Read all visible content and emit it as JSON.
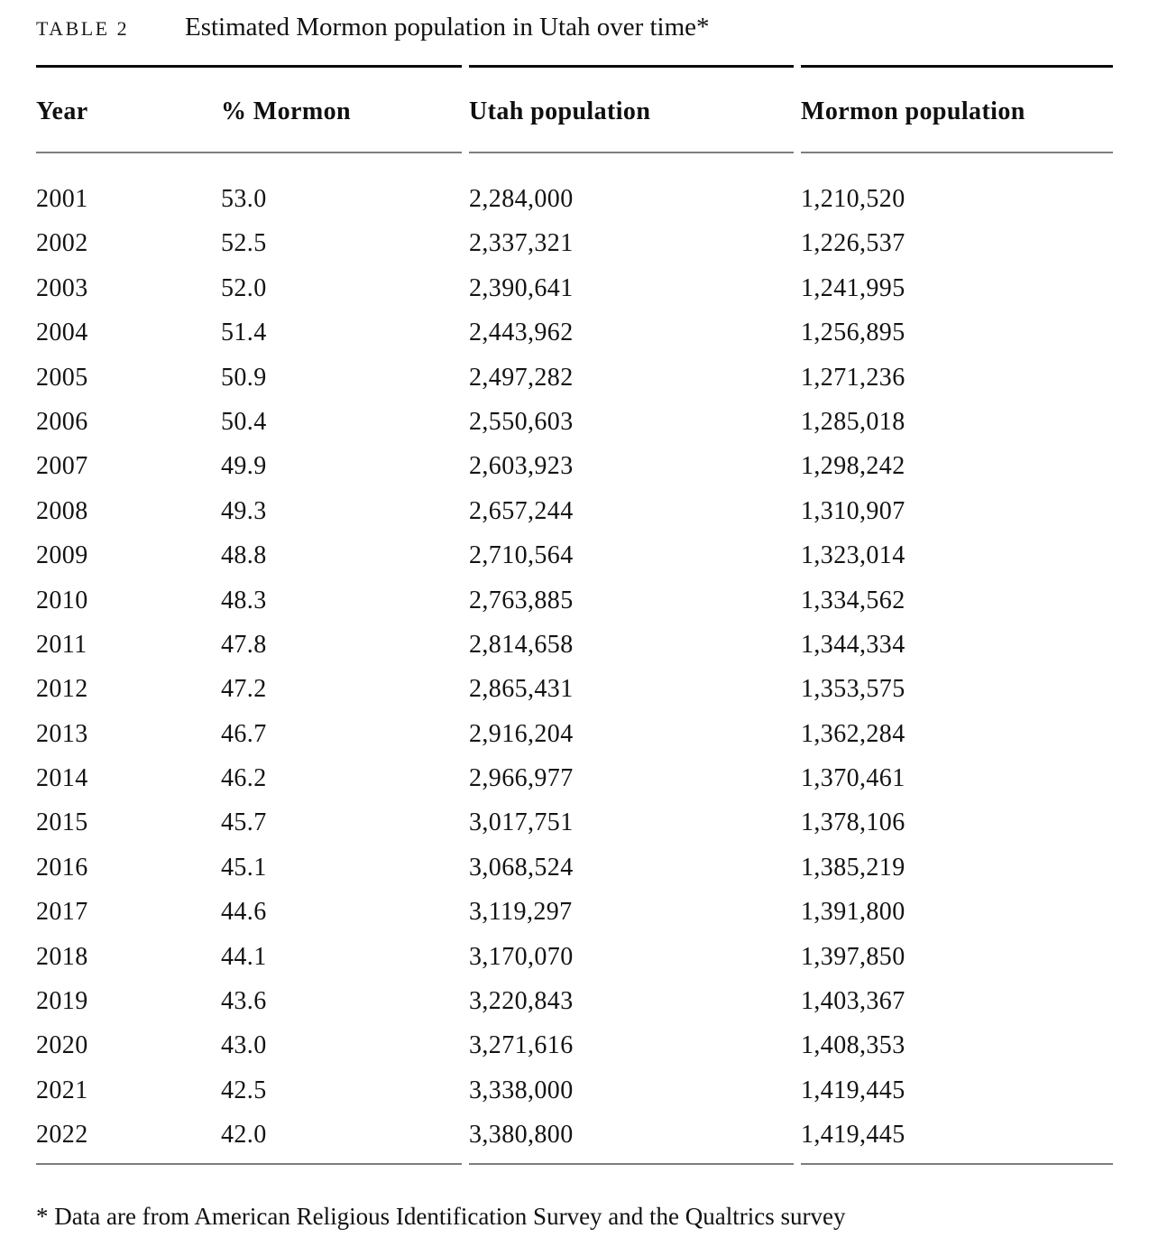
{
  "page": {
    "label": "TABLE 2",
    "title": "Estimated Mormon population in Utah over time*",
    "footnote": "* Data are from American Religious Identification Survey and the Qualtrics survey"
  },
  "chart_data": {
    "type": "table",
    "title": "Estimated Mormon population in Utah over time*",
    "columns": [
      "Year",
      "% Mormon",
      "Utah population",
      "Mormon population"
    ],
    "rows": [
      [
        "2001",
        "53.0",
        "2,284,000",
        "1,210,520"
      ],
      [
        "2002",
        "52.5",
        "2,337,321",
        "1,226,537"
      ],
      [
        "2003",
        "52.0",
        "2,390,641",
        "1,241,995"
      ],
      [
        "2004",
        "51.4",
        "2,443,962",
        "1,256,895"
      ],
      [
        "2005",
        "50.9",
        "2,497,282",
        "1,271,236"
      ],
      [
        "2006",
        "50.4",
        "2,550,603",
        "1,285,018"
      ],
      [
        "2007",
        "49.9",
        "2,603,923",
        "1,298,242"
      ],
      [
        "2008",
        "49.3",
        "2,657,244",
        "1,310,907"
      ],
      [
        "2009",
        "48.8",
        "2,710,564",
        "1,323,014"
      ],
      [
        "2010",
        "48.3",
        "2,763,885",
        "1,334,562"
      ],
      [
        "2011",
        "47.8",
        "2,814,658",
        "1,344,334"
      ],
      [
        "2012",
        "47.2",
        "2,865,431",
        "1,353,575"
      ],
      [
        "2013",
        "46.7",
        "2,916,204",
        "1,362,284"
      ],
      [
        "2014",
        "46.2",
        "2,966,977",
        "1,370,461"
      ],
      [
        "2015",
        "45.7",
        "3,017,751",
        "1,378,106"
      ],
      [
        "2016",
        "45.1",
        "3,068,524",
        "1,385,219"
      ],
      [
        "2017",
        "44.6",
        "3,119,297",
        "1,391,800"
      ],
      [
        "2018",
        "44.1",
        "3,170,070",
        "1,397,850"
      ],
      [
        "2019",
        "43.6",
        "3,220,843",
        "1,403,367"
      ],
      [
        "2020",
        "43.0",
        "3,271,616",
        "1,408,353"
      ],
      [
        "2021",
        "42.5",
        "3,338,000",
        "1,419,445"
      ],
      [
        "2022",
        "42.0",
        "3,380,800",
        "1,419,445"
      ]
    ],
    "colors": {
      "text": "#131313",
      "thick_rule": "#0a0a0a",
      "thin_rule": "#7d7d7d",
      "background": "#ffffff"
    }
  }
}
